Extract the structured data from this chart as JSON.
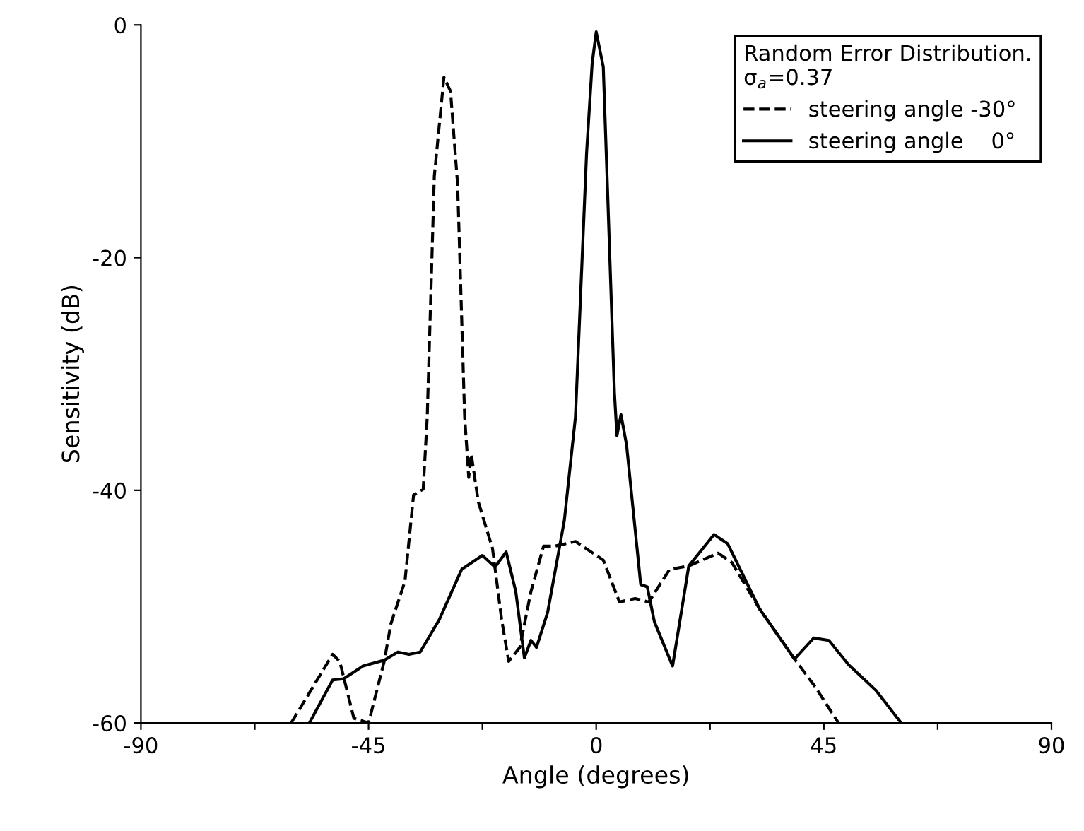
{
  "chart_data": {
    "type": "line",
    "xlabel": "Angle (degrees)",
    "ylabel": "Sensitivity (dB)",
    "legend_title": "Random Error Distribution.\nσ$_{a}$=0.37",
    "xlim": [
      -90,
      90
    ],
    "ylim": [
      -60,
      0
    ],
    "xticks": [
      -90,
      {
        "value": -67.5,
        "label": null
      },
      -45,
      {
        "value": -22.5,
        "label": null
      },
      0,
      {
        "value": 22.5,
        "label": null
      },
      45,
      {
        "value": 67.5,
        "label": null
      },
      90
    ],
    "yticks": [
      -60,
      -40,
      -20,
      0
    ],
    "grid": false,
    "legend": "top right",
    "marker": "none",
    "series": [
      {
        "name": "steering angle -30°",
        "color": "#000000",
        "line_style": "dashed",
        "x": [
          -60.3,
          -52.1,
          -50.7,
          -47.9,
          -45,
          -41.9,
          -40.6,
          -37.8,
          -36.1,
          -34.2,
          -33.4,
          -32.0,
          -30.1,
          -28.8,
          -27.4,
          -26.0,
          -25.5,
          -25.2,
          -24.7,
          -23.3,
          -20.5,
          -18.7,
          -17.3,
          -15.1,
          -12.9,
          -10.4,
          -8.2,
          -4.1,
          1.4,
          4.6,
          7.7,
          10.4,
          14.5,
          18.3,
          24.1,
          26.8,
          32.3,
          39.2,
          43.3,
          47.9
        ],
        "values": [
          -60,
          -54.1,
          -54.7,
          -59.6,
          -60,
          -54.7,
          -51.5,
          -47.8,
          -40.4,
          -39.9,
          -33.7,
          -13.0,
          -4.5,
          -5.7,
          -13.7,
          -33.7,
          -36.9,
          -38.9,
          -36.9,
          -41,
          -45,
          -51.1,
          -54.7,
          -53.5,
          -48.7,
          -44.8,
          -44.8,
          -44.4,
          -46,
          -49.6,
          -49.3,
          -49.6,
          -46.8,
          -46.5,
          -45.4,
          -46.2,
          -50.2,
          -54.5,
          -56.9,
          -60
        ]
      },
      {
        "name": "steering angle    0°",
        "color": "#000000",
        "line_style": "solid",
        "x": [
          -56.7,
          -52.1,
          -49.9,
          -46.1,
          -41.9,
          -39.2,
          -37,
          -34.8,
          -31,
          -26.6,
          -22.5,
          -20,
          -17.8,
          -15.9,
          -14.2,
          -12.9,
          -11.8,
          -9.6,
          -6.3,
          -4.1,
          -1.9,
          -0.8,
          0,
          1.4,
          2.2,
          3.6,
          4.1,
          4.9,
          6,
          8.8,
          10.1,
          11.5,
          15.1,
          18.3,
          23.3,
          26,
          32.3,
          39.2,
          43,
          46,
          49.9,
          55.3,
          60.3
        ],
        "values": [
          -60,
          -56.3,
          -56.2,
          -55.1,
          -54.6,
          -53.9,
          -54.1,
          -53.9,
          -51.1,
          -46.8,
          -45.6,
          -46.6,
          -45.3,
          -48.7,
          -54.4,
          -52.9,
          -53.5,
          -50.5,
          -42.6,
          -33.7,
          -11,
          -3.3,
          -0.6,
          -3.6,
          -13.7,
          -31.6,
          -35.3,
          -33.5,
          -36.1,
          -48.1,
          -48.3,
          -51.3,
          -55.1,
          -46.5,
          -43.8,
          -44.6,
          -50.2,
          -54.5,
          -52.7,
          -52.9,
          -55,
          -57.2,
          -60
        ]
      }
    ]
  }
}
